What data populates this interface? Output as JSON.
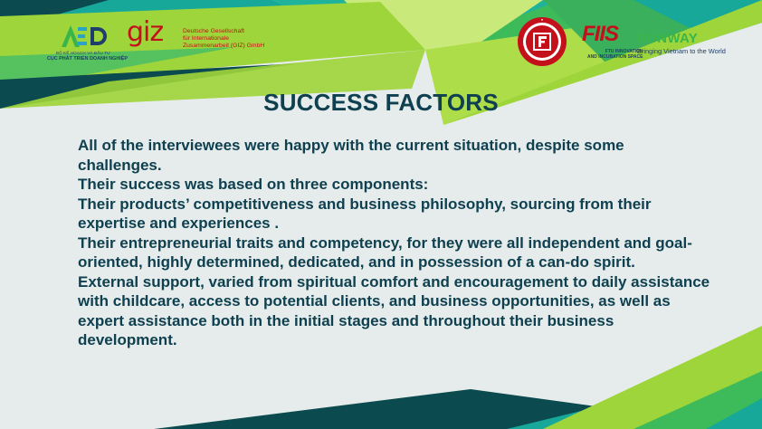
{
  "logos": {
    "aed": {
      "mark": "AED",
      "line1": "BỘ KẾ HOẠCH VÀ ĐẦU TƯ",
      "line2": "CỤC PHÁT TRIỂN DOANH NGHIỆP"
    },
    "giz": {
      "word": "giz",
      "line1": "Deutsche Gesellschaft",
      "line2": "für Internationale",
      "line3": "Zusammenarbeit (GIZ) GmbH"
    },
    "ftu": {
      "icon": "ftu-university-seal-icon"
    },
    "fiis": {
      "word": "FIIS",
      "line1": "FTU INNOVATION",
      "line2": "AND INCUBATION SPACE"
    },
    "runway": {
      "word": "RUNWAY",
      "tagline": "Bringing Vietnam to the World"
    }
  },
  "title": "SUCCESS FACTORS",
  "paragraphs": [
    "All of the interviewees were happy with the current situation, despite some challenges.",
    "Their success was based on three components:",
    "Their products’ competitiveness and business philosophy, sourcing from their expertise and experiences .",
    "Their entrepreneurial traits and competency, for they were all independent and goal-oriented, highly determined, dedicated, and in possession of a can-do spirit.",
    "External support, varied from spiritual comfort and encouragement to daily assistance with childcare, access to potential clients, and business opportunities, as well as expert assistance both in the initial stages and throughout their business development."
  ],
  "colors": {
    "background": "#e6eceb",
    "title": "#0f4050",
    "body": "#0f4050",
    "dark_teal": "#0b4a4e",
    "teal": "#17a89a",
    "green": "#3dbb5a",
    "lime": "#9ed53a",
    "brand_red": "#c4101a"
  }
}
